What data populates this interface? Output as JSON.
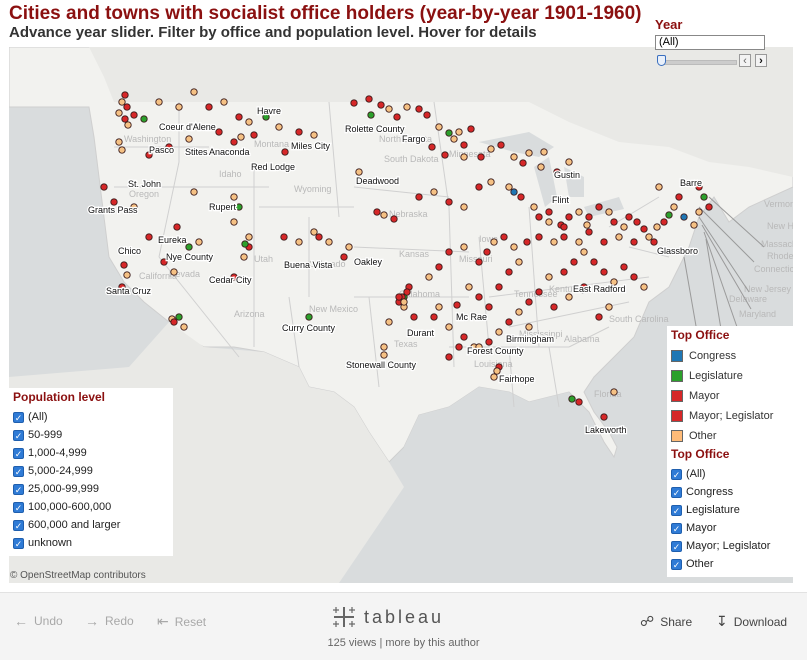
{
  "header": {
    "title": "Cities and towns with socialist office holders (year-by-year 1901-1960)",
    "subtitle": "Advance year slider. Filter by office and population level. Hover for details"
  },
  "year_filter": {
    "label": "Year",
    "selected": "(All)"
  },
  "population_filter": {
    "title": "Population level",
    "items": [
      "(All)",
      "50-999",
      "1,000-4,999",
      "5,000-24,999",
      "25,000-99,999",
      "100,000-600,000",
      "600,000 and larger",
      "unknown"
    ]
  },
  "color_legend": {
    "title": "Top Office",
    "items": [
      {
        "label": "Congress",
        "color": "#1f77b4"
      },
      {
        "label": "Legislature",
        "color": "#2ca02c"
      },
      {
        "label": "Mayor",
        "color": "#d62728"
      },
      {
        "label": "Mayor; Legislator",
        "color": "#d62728"
      },
      {
        "label": "Other",
        "color": "#ffbb78"
      }
    ]
  },
  "office_filter": {
    "title": "Top Office",
    "items": [
      "(All)",
      "Congress",
      "Legislature",
      "Mayor",
      "Mayor; Legislator",
      "Other"
    ]
  },
  "map": {
    "city_labels": [
      "Havre",
      "Coeur d'Alene",
      "Rolette County",
      "Pasco",
      "Stites",
      "Anaconda",
      "Miles City",
      "Fargo",
      "Red Lodge",
      "Gustin",
      "Deadwood",
      "Barre",
      "St. John",
      "Grants Pass",
      "Rupert",
      "Flint",
      "Eureka",
      "Chico",
      "Nye County",
      "Oakley",
      "Glassboro",
      "Buena Vista",
      "Cedar City",
      "Santa Cruz",
      "East Radford",
      "Curry County",
      "Mc Rae",
      "Durant",
      "Birmingham",
      "Forest County",
      "Stonewall County",
      "Fairhope",
      "Lakeworth"
    ],
    "state_labels": [
      "Washington",
      "Montana",
      "North Dakota",
      "Minnesota",
      "Oregon",
      "Idaho",
      "South Dakota",
      "Wyoming",
      "Iowa",
      "Nevada",
      "Nebraska",
      "Utah",
      "Colorado",
      "Kansas",
      "Missouri",
      "Kentucky",
      "California",
      "Arizona",
      "New Mexico",
      "Oklahoma",
      "Tennessee",
      "Texas",
      "Mississippi",
      "Alabama",
      "South Carolina",
      "Louisiana",
      "Florida",
      "Vermont",
      "New Hampshire",
      "Massachusetts",
      "Rhode Island",
      "Connecticut",
      "New Jersey",
      "Delaware",
      "Maryland"
    ],
    "attribution": "© OpenStreetMap contributors"
  },
  "footer": {
    "undo": "Undo",
    "redo": "Redo",
    "reset": "Reset",
    "logo": "tableau",
    "views": "125 views | more by this author",
    "share": "Share",
    "download": "Download"
  }
}
